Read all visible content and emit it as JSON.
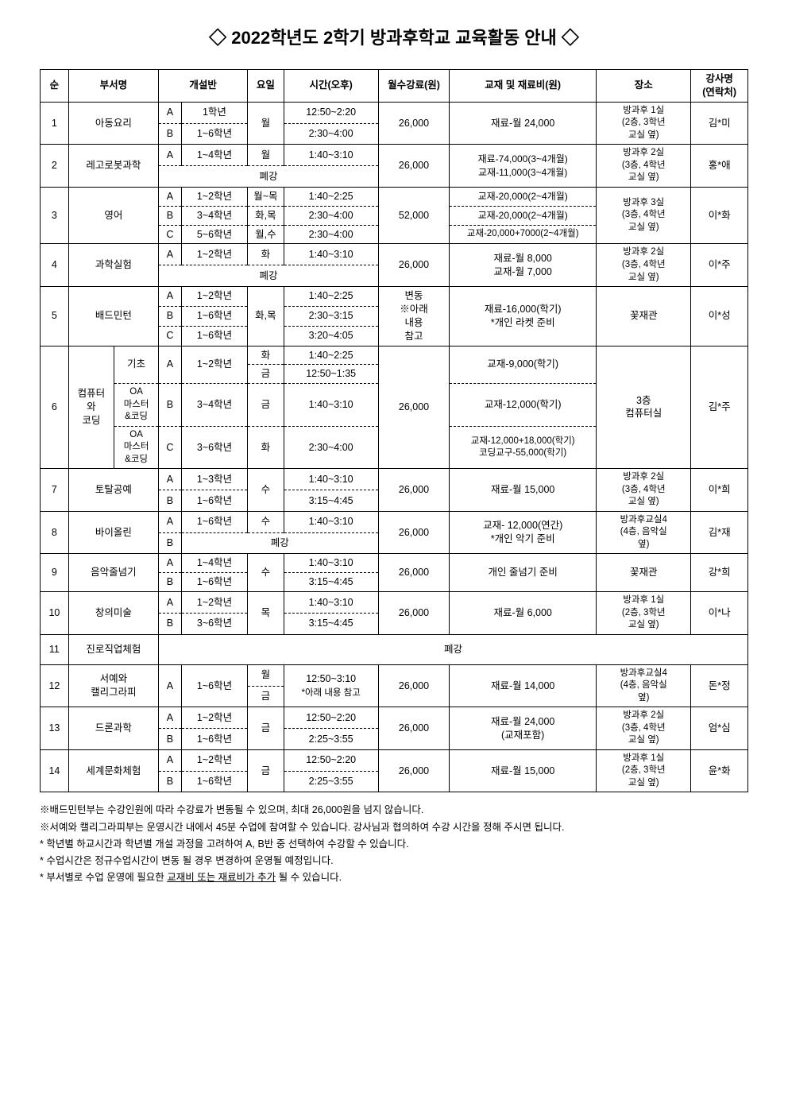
{
  "title": "◇ 2022학년도 2학기 방과후학교 교육활동 안내 ◇",
  "headers": {
    "num": "순",
    "dept": "부서명",
    "class": "개설반",
    "day": "요일",
    "time": "시간(오후)",
    "fee": "월수강료(원)",
    "material": "교재 및 재료비(원)",
    "place": "장소",
    "teacher": "강사명\n(연락처)"
  },
  "r1": {
    "num": "1",
    "dept": "아동요리",
    "a": "A",
    "a_grade": "1학년",
    "b": "B",
    "b_grade": "1~6학년",
    "day": "월",
    "a_time": "12:50~2:20",
    "b_time": "2:30~4:00",
    "fee": "26,000",
    "material": "재료-월 24,000",
    "place": "방과후 1실\n(2층, 3학년\n교실 옆)",
    "teacher": "김*미"
  },
  "r2": {
    "num": "2",
    "dept": "레고로봇과학",
    "a": "A",
    "a_grade": "1~4학년",
    "a_day": "월",
    "a_time": "1:40~3:10",
    "closed": "폐강",
    "fee": "26,000",
    "material": "재료-74,000(3~4개월)\n교재-11,000(3~4개월)",
    "place": "방과후 2실\n(3층, 4학년\n교실 옆)",
    "teacher": "홍*애"
  },
  "r3": {
    "num": "3",
    "dept": "영어",
    "a": "A",
    "a_grade": "1~2학년",
    "a_day": "월~목",
    "a_time": "1:40~2:25",
    "a_mat": "교재-20,000(2~4개월)",
    "b": "B",
    "b_grade": "3~4학년",
    "b_day": "화,목",
    "b_time": "2:30~4:00",
    "b_mat": "교재-20,000(2~4개월)",
    "c": "C",
    "c_grade": "5~6학년",
    "c_day": "월,수",
    "c_time": "2:30~4:00",
    "c_mat": "교재-20,000+7000(2~4개월)",
    "fee": "52,000",
    "place": "방과후 3실\n(3층, 4학년\n교실 옆)",
    "teacher": "이*화"
  },
  "r4": {
    "num": "4",
    "dept": "과학실험",
    "a": "A",
    "a_grade": "1~2학년",
    "a_day": "화",
    "a_time": "1:40~3:10",
    "closed": "폐강",
    "fee": "26,000",
    "material": "재료-월 8,000\n교재-월 7,000",
    "place": "방과후 2실\n(3층, 4학년\n교실 옆)",
    "teacher": "이*주"
  },
  "r5": {
    "num": "5",
    "dept": "배드민턴",
    "a": "A",
    "a_grade": "1~2학년",
    "a_time": "1:40~2:25",
    "b": "B",
    "b_grade": "1~6학년",
    "b_time": "2:30~3:15",
    "c": "C",
    "c_grade": "1~6학년",
    "c_time": "3:20~4:05",
    "day": "화,목",
    "fee": "변동\n※아래\n내용\n참고",
    "material": "재료-16,000(학기)\n*개인 라켓 준비",
    "place": "꽃재관",
    "teacher": "이*성"
  },
  "r6": {
    "num": "6",
    "dept1": "컴퓨터\n와\n코딩",
    "sub_a": "기초",
    "sub_b": "OA\n마스터\n&코딩",
    "sub_c": "OA\n마스터\n&코딩",
    "a": "A",
    "a_grade": "1~2학년",
    "a_day1": "화",
    "a_time1": "1:40~2:25",
    "a_day2": "금",
    "a_time2": "12:50~1:35",
    "a_mat": "교재-9,000(학기)",
    "b": "B",
    "b_grade": "3~4학년",
    "b_day": "금",
    "b_time": "1:40~3:10",
    "b_mat": "교재-12,000(학기)",
    "c": "C",
    "c_grade": "3~6학년",
    "c_day": "화",
    "c_time": "2:30~4:00",
    "c_mat": "교재-12,000+18,000(학기)\n코딩교구-55,000(학기)",
    "fee": "26,000",
    "place": "3층\n컴퓨터실",
    "teacher": "김*주"
  },
  "r7": {
    "num": "7",
    "dept": "토탈공예",
    "a": "A",
    "a_grade": "1~3학년",
    "a_time": "1:40~3:10",
    "b": "B",
    "b_grade": "1~6학년",
    "b_time": "3:15~4:45",
    "day": "수",
    "fee": "26,000",
    "material": "재료-월 15,000",
    "place": "방과후 2실\n(3층, 4학년\n교실 옆)",
    "teacher": "이*희"
  },
  "r8": {
    "num": "8",
    "dept": "바이올린",
    "a": "A",
    "a_grade": "1~6학년",
    "a_day": "수",
    "a_time": "1:40~3:10",
    "b": "B",
    "closed": "폐강",
    "fee": "26,000",
    "material": "교재- 12,000(연간)\n*개인 악기 준비",
    "place": "방과후교실4\n(4층, 음악실\n옆)",
    "teacher": "김*재"
  },
  "r9": {
    "num": "9",
    "dept": "음악줄넘기",
    "a": "A",
    "a_grade": "1~4학년",
    "a_time": "1:40~3:10",
    "b": "B",
    "b_grade": "1~6학년",
    "b_time": "3:15~4:45",
    "day": "수",
    "fee": "26,000",
    "material": "개인 줄넘기 준비",
    "place": "꽃재관",
    "teacher": "강*희"
  },
  "r10": {
    "num": "10",
    "dept": "창의미술",
    "a": "A",
    "a_grade": "1~2학년",
    "a_time": "1:40~3:10",
    "b": "B",
    "b_grade": "3~6학년",
    "b_time": "3:15~4:45",
    "day": "목",
    "fee": "26,000",
    "material": "재료-월 6,000",
    "place": "방과후 1실\n(2층, 3학년\n교실 옆)",
    "teacher": "이*나"
  },
  "r11": {
    "num": "11",
    "dept": "진로직업체험",
    "closed": "폐강"
  },
  "r12": {
    "num": "12",
    "dept": "서예와\n캘리그라피",
    "a": "A",
    "a_grade": "1~6학년",
    "day1": "월",
    "day2": "금",
    "time1": "12:50~3:10",
    "time2": "*아래 내용 참고",
    "fee": "26,000",
    "material": "재료-월 14,000",
    "place": "방과후교실4\n(4층, 음악실\n옆)",
    "teacher": "돈*정"
  },
  "r13": {
    "num": "13",
    "dept": "드론과학",
    "a": "A",
    "a_grade": "1~2학년",
    "a_time": "12:50~2:20",
    "b": "B",
    "b_grade": "1~6학년",
    "b_time": "2:25~3:55",
    "day": "금",
    "fee": "26,000",
    "material": "재료-월 24,000\n(교재포함)",
    "place": "방과후 2실\n(3층, 4학년\n교실 옆)",
    "teacher": "엄*심"
  },
  "r14": {
    "num": "14",
    "dept": "세계문화체험",
    "a": "A",
    "a_grade": "1~2학년",
    "a_time": "12:50~2:20",
    "b": "B",
    "b_grade": "1~6학년",
    "b_time": "2:25~3:55",
    "day": "금",
    "fee": "26,000",
    "material": "재료-월 15,000",
    "place": "방과후 1실\n(2층, 3학년\n교실 옆)",
    "teacher": "윤*화"
  },
  "notes": {
    "n1": "※배드민턴부는 수강인원에 따라 수강료가 변동될 수 있으며, 최대 26,000원을 넘지 않습니다.",
    "n2": "※서예와 캘리그라피부는 운영시간 내에서 45분 수업에 참여할 수 있습니다. 강사님과 협의하여 수강 시간을 정해 주시면 됩니다.",
    "n3": "* 학년별 하교시간과 학년별 개설 과정을 고려하여 A, B반 중 선택하여 수강할 수 있습니다.",
    "n4": "* 수업시간은 정규수업시간이 변동 될 경우 변경하여 운영될 예정입니다.",
    "n5_prefix": "* 부서별로 수업 운영에 필요한 ",
    "n5_underline": "교재비 또는 재료비가 추가",
    "n5_suffix": " 될 수 있습니다."
  }
}
